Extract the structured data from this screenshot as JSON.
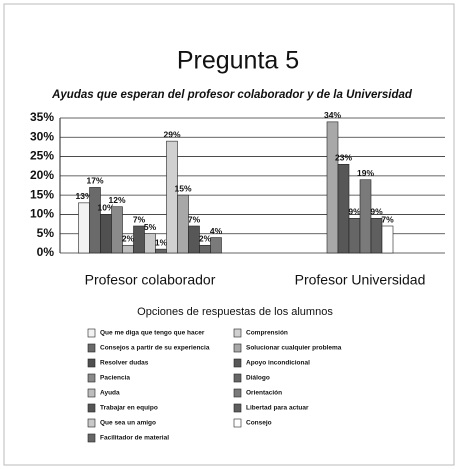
{
  "chart_data": {
    "type": "bar",
    "title": "Pregunta 5",
    "subtitle": "Ayudas que esperan del profesor colaborador y de la Universidad",
    "legend_title": "Opciones de respuestas de los alumnos",
    "categories": [
      "Profesor colaborador",
      "Profesor Universidad"
    ],
    "ylim": [
      0,
      35
    ],
    "yticks": [
      {
        "value": 0,
        "label": "0%"
      },
      {
        "value": 5,
        "label": "5%"
      },
      {
        "value": 10,
        "label": "10%"
      },
      {
        "value": 15,
        "label": "15%"
      },
      {
        "value": 20,
        "label": "20%"
      },
      {
        "value": 25,
        "label": "25%"
      },
      {
        "value": 30,
        "label": "30%"
      },
      {
        "value": 35,
        "label": "35%"
      }
    ],
    "grid": true,
    "series": [
      {
        "name": "Que me diga que tengo que hacer",
        "color": "#f2f2f2",
        "values": [
          13,
          null
        ],
        "value_labels": [
          "13%",
          null
        ]
      },
      {
        "name": "Consejos a partir de su experiencia",
        "color": "#6a6a6a",
        "values": [
          17,
          null
        ],
        "value_labels": [
          "17%",
          null
        ]
      },
      {
        "name": "Resolver dudas",
        "color": "#505050",
        "values": [
          10,
          null
        ],
        "value_labels": [
          "10%",
          null
        ]
      },
      {
        "name": "Paciencia",
        "color": "#8a8a8a",
        "values": [
          12,
          null
        ],
        "value_labels": [
          "12%",
          null
        ]
      },
      {
        "name": "Ayuda",
        "color": "#bdbdbd",
        "values": [
          2,
          null
        ],
        "value_labels": [
          "2%",
          null
        ]
      },
      {
        "name": "Trabajar en equipo",
        "color": "#555555",
        "values": [
          7,
          null
        ],
        "value_labels": [
          "7%",
          null
        ]
      },
      {
        "name": "Que sea un amigo",
        "color": "#c8c8c8",
        "values": [
          5,
          null
        ],
        "value_labels": [
          "5%",
          null
        ]
      },
      {
        "name": "Facilitador de material",
        "color": "#666666",
        "values": [
          1,
          null
        ],
        "value_labels": [
          "1%",
          null
        ]
      },
      {
        "name": "Comprensión",
        "color": "#d0d0d0",
        "values": [
          29,
          null
        ],
        "value_labels": [
          "29%",
          null
        ]
      },
      {
        "name": "Solucionar cualquier problema",
        "color": "#a8a8a8",
        "values": [
          15,
          34
        ],
        "value_labels": [
          "15%",
          "34%"
        ]
      },
      {
        "name": "Apoyo incondicional",
        "color": "#575757",
        "values": [
          7,
          23
        ],
        "value_labels": [
          "7%",
          "23%"
        ]
      },
      {
        "name": "Diálogo",
        "color": "#666666",
        "values": [
          2,
          9
        ],
        "value_labels": [
          "2%",
          "9%"
        ]
      },
      {
        "name": "Orientación",
        "color": "#7a7a7a",
        "values": [
          4,
          19
        ],
        "value_labels": [
          "4%",
          "19%"
        ]
      },
      {
        "name": "Libertad para actuar",
        "color": "#5f5f5f",
        "values": [
          null,
          9
        ],
        "value_labels": [
          null,
          "9%"
        ]
      },
      {
        "name": "Consejo",
        "color": "#ffffff",
        "values": [
          null,
          7
        ],
        "value_labels": [
          null,
          "7%"
        ]
      }
    ]
  }
}
